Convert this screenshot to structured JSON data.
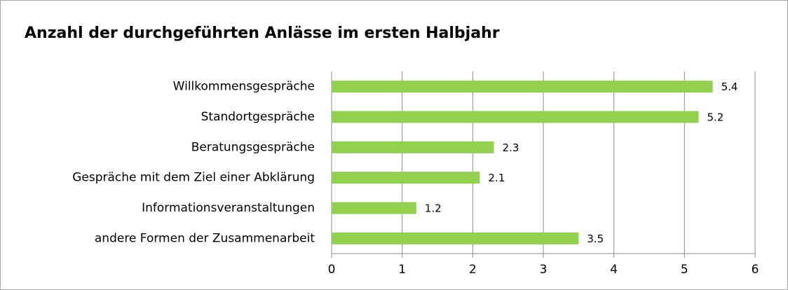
{
  "chart_data": {
    "type": "bar",
    "orientation": "horizontal",
    "title": "Anzahl der durchgeführten Anlässe im ersten Halbjahr",
    "categories": [
      "Willkommensgespräche",
      "Standortgespräche",
      "Beratungsgespräche",
      "Gespräche mit dem Ziel einer Abklärung",
      "Informationsveranstaltungen",
      "andere Formen der Zusammenarbeit"
    ],
    "values": [
      5.4,
      5.2,
      2.3,
      2.1,
      1.2,
      3.5
    ],
    "color": "#92d050",
    "xlim": [
      0,
      6
    ],
    "xticks": [
      0,
      1,
      2,
      3,
      4,
      5,
      6
    ],
    "grid": true
  }
}
